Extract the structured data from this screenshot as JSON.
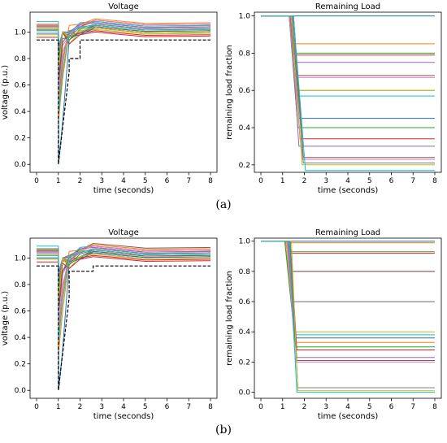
{
  "captions": [
    "(a)",
    "(b)"
  ],
  "chart_data": [
    {
      "panel": "(a)",
      "type": "line",
      "title": "Voltage",
      "xlabel": "time (seconds)",
      "ylabel": "voltage (p.u.)",
      "xlim": [
        -0.3,
        8.3
      ],
      "ylim": [
        -0.06,
        1.15
      ],
      "xticks": [
        "0",
        "1",
        "2",
        "3",
        "4",
        "5",
        "6",
        "7",
        "8"
      ],
      "yticks": [
        "0.0",
        "0.2",
        "0.4",
        "0.6",
        "0.8",
        "1.0"
      ],
      "grid": false,
      "legend": "none",
      "dip_time": 1.0,
      "recovery_time": 2.7,
      "final_values": [
        1.02,
        1.05,
        1.0,
        0.98,
        1.04,
        1.06,
        1.01,
        1.03,
        0.99,
        1.05,
        1.0,
        1.07,
        1.02,
        0.97,
        1.04,
        1.01,
        1.06,
        1.03,
        1.0,
        1.02
      ],
      "min_values": [
        0.02,
        0.35,
        0.55,
        0.7,
        0.75,
        0.8,
        0.6,
        0.5,
        0.85,
        0.9,
        0.65,
        0.45,
        0.78,
        0.7,
        0.88,
        0.62,
        0.55,
        0.83,
        0.72,
        0.4
      ],
      "threshold": {
        "x": [
          0,
          1,
          1,
          1.5,
          1.5,
          2,
          2,
          8
        ],
        "y": [
          0.94,
          0.94,
          0.0,
          0.7,
          0.8,
          0.8,
          0.94,
          0.94
        ]
      },
      "threshold_style": "dashed"
    },
    {
      "panel": "(a)",
      "type": "line",
      "title": "Remaining Load",
      "xlabel": "time (seconds)",
      "ylabel": "remaining load fraction",
      "xlim": [
        -0.3,
        8.3
      ],
      "ylim": [
        0.16,
        1.02
      ],
      "xticks": [
        "0",
        "1",
        "2",
        "3",
        "4",
        "5",
        "6",
        "7",
        "8"
      ],
      "yticks": [
        "0.2",
        "0.4",
        "0.6",
        "0.8",
        "1.0"
      ],
      "grid": false,
      "legend": "none",
      "final_values": [
        1.0,
        0.85,
        0.8,
        0.79,
        0.75,
        0.68,
        0.67,
        0.6,
        0.6,
        0.57,
        0.45,
        0.4,
        0.4,
        0.34,
        0.3,
        0.24,
        0.23,
        0.21,
        0.2,
        0.17
      ],
      "shed_start": [
        1.3,
        1.35,
        1.4,
        1.3,
        1.45,
        1.3,
        1.5,
        1.35,
        1.4,
        1.3,
        1.45,
        1.5,
        1.3,
        1.4,
        1.35,
        1.5,
        1.3,
        1.45,
        1.4,
        1.5
      ],
      "shed_end": [
        1.3,
        1.45,
        1.5,
        1.45,
        1.6,
        1.55,
        1.7,
        1.6,
        1.65,
        1.6,
        1.75,
        1.85,
        1.7,
        1.8,
        1.75,
        1.95,
        1.9,
        1.95,
        1.9,
        2.05
      ]
    },
    {
      "panel": "(b)",
      "type": "line",
      "title": "Voltage",
      "xlabel": "time (seconds)",
      "ylabel": "voltage (p.u.)",
      "xlim": [
        -0.3,
        8.3
      ],
      "ylim": [
        -0.06,
        1.15
      ],
      "xticks": [
        "0",
        "1",
        "2",
        "3",
        "4",
        "5",
        "6",
        "7",
        "8"
      ],
      "yticks": [
        "0.0",
        "0.2",
        "0.4",
        "0.6",
        "0.8",
        "1.0"
      ],
      "grid": false,
      "legend": "none",
      "dip_time": 1.0,
      "recovery_time": 2.6,
      "final_values": [
        1.03,
        1.06,
        1.01,
        0.99,
        1.05,
        1.08,
        1.02,
        1.04,
        1.0,
        1.06,
        1.01,
        1.07,
        1.03,
        0.98,
        1.05,
        1.02,
        1.06,
        1.04,
        1.0,
        1.03
      ],
      "min_values": [
        0.01,
        0.3,
        0.5,
        0.68,
        0.72,
        0.82,
        0.58,
        0.48,
        0.86,
        0.9,
        0.6,
        0.42,
        0.76,
        0.66,
        0.87,
        0.6,
        0.5,
        0.8,
        0.7,
        0.38
      ],
      "threshold": {
        "x": [
          0,
          1,
          1,
          1.5,
          1.5,
          2.6,
          2.6,
          8
        ],
        "y": [
          0.94,
          0.94,
          0.0,
          0.7,
          0.9,
          0.9,
          0.94,
          0.94
        ]
      },
      "threshold_style": "dashed"
    },
    {
      "panel": "(b)",
      "type": "line",
      "title": "Remaining Load",
      "xlabel": "time (seconds)",
      "ylabel": "remaining load fraction",
      "xlim": [
        -0.3,
        8.3
      ],
      "ylim": [
        -0.04,
        1.02
      ],
      "xticks": [
        "0",
        "1",
        "2",
        "3",
        "4",
        "5",
        "6",
        "7",
        "8"
      ],
      "yticks": [
        "0.0",
        "0.2",
        "0.4",
        "0.6",
        "0.8",
        "1.0"
      ],
      "grid": false,
      "legend": "none",
      "final_values": [
        1.0,
        0.99,
        0.93,
        0.92,
        0.8,
        0.8,
        0.6,
        0.6,
        0.4,
        0.38,
        0.36,
        0.33,
        0.3,
        0.28,
        0.23,
        0.21,
        0.2,
        0.03,
        0.01,
        0.0
      ],
      "shed_start": [
        1.1,
        1.15,
        1.2,
        1.1,
        1.25,
        1.3,
        1.1,
        1.2,
        1.15,
        1.25,
        1.3,
        1.2,
        1.1,
        1.35,
        1.25,
        1.3,
        1.2,
        1.35,
        1.4,
        1.3
      ],
      "shed_end": [
        1.1,
        1.2,
        1.3,
        1.3,
        1.4,
        1.45,
        1.45,
        1.5,
        1.55,
        1.55,
        1.6,
        1.6,
        1.6,
        1.65,
        1.65,
        1.65,
        1.6,
        1.7,
        1.7,
        1.65
      ]
    }
  ],
  "colors": [
    "#1f77b4",
    "#ff7f0e",
    "#2ca02c",
    "#d62728",
    "#9467bd",
    "#8c564b",
    "#e377c2",
    "#7f7f7f",
    "#bcbd22",
    "#17becf"
  ]
}
